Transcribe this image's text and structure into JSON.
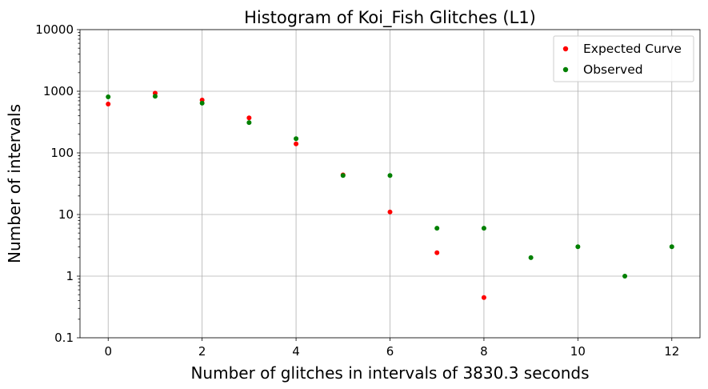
{
  "chart_data": {
    "type": "scatter",
    "title": "Histogram of Koi_Fish Glitches (L1)",
    "xlabel": "Number of glitches in intervals of 3830.3 seconds",
    "ylabel": "Number of intervals",
    "xlim": [
      -0.6,
      12.6
    ],
    "ylim": [
      0.1,
      10000
    ],
    "yscale": "log",
    "grid": true,
    "legend_position": "top-right",
    "x_ticks": [
      0,
      2,
      4,
      6,
      8,
      10,
      12
    ],
    "x_tick_labels": [
      "0",
      "2",
      "4",
      "6",
      "8",
      "10",
      "12"
    ],
    "y_ticks": [
      0.1,
      1,
      10,
      100,
      1000,
      10000
    ],
    "y_tick_labels": [
      "0.1",
      "1",
      "10",
      "100",
      "1000",
      "10000"
    ],
    "series": [
      {
        "name": "Expected Curve",
        "color": "#ff0000",
        "x": [
          0,
          1,
          2,
          3,
          4,
          5,
          6,
          7,
          8
        ],
        "y": [
          620,
          930,
          720,
          370,
          140,
          44,
          11,
          2.4,
          0.45
        ]
      },
      {
        "name": "Observed",
        "color": "#008000",
        "x": [
          0,
          1,
          2,
          3,
          4,
          5,
          6,
          7,
          8,
          9,
          10,
          11,
          12
        ],
        "y": [
          810,
          830,
          640,
          310,
          170,
          43,
          43,
          6,
          6,
          2,
          3,
          1,
          3
        ]
      }
    ]
  }
}
